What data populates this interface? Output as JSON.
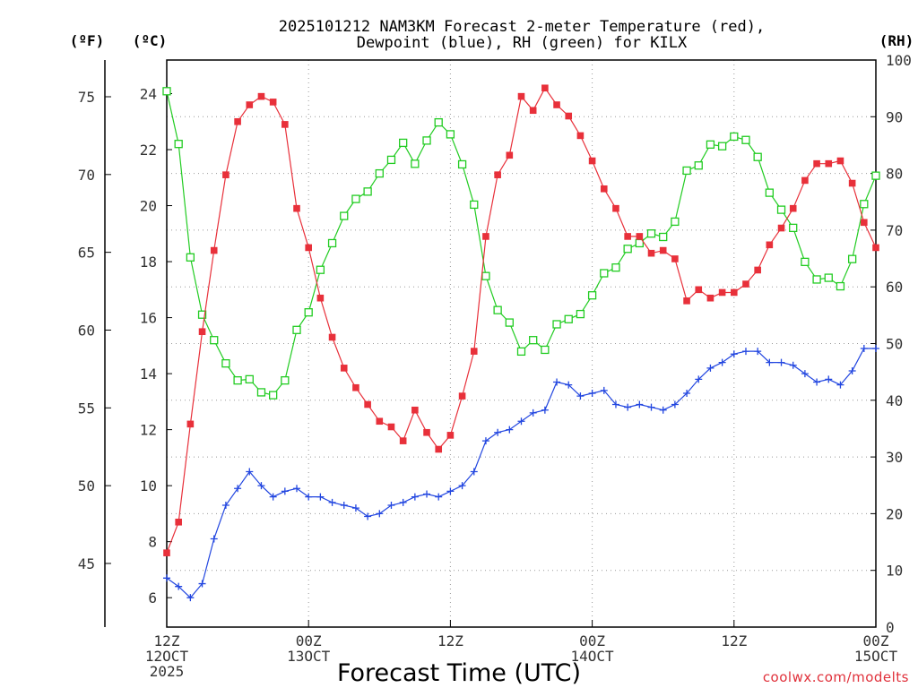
{
  "title_line1": "2025101212 NAM3KM Forecast 2-meter Temperature (red),",
  "title_line2": "Dewpoint (blue), RH (green) for KILX",
  "unit_f": "(ºF)",
  "unit_c": "(ºC)",
  "unit_rh": "(RH)",
  "credit": "coolwx.com/modelts",
  "chart_data": {
    "type": "line",
    "title": "2025101212 NAM3KM Forecast 2-meter Temperature (red), Dewpoint (blue), RH (green) for KILX",
    "xlabel": "Forecast Time (UTC)",
    "x_range_hours": [
      0,
      60
    ],
    "x_ticks": [
      {
        "hour": 0,
        "lines": [
          "12Z",
          "12OCT",
          "2025"
        ]
      },
      {
        "hour": 12,
        "lines": [
          "00Z",
          "13OCT"
        ]
      },
      {
        "hour": 24,
        "lines": [
          "12Z"
        ]
      },
      {
        "hour": 36,
        "lines": [
          "00Z",
          "14OCT"
        ]
      },
      {
        "hour": 48,
        "lines": [
          "12Z"
        ]
      },
      {
        "hour": 60,
        "lines": [
          "00Z",
          "15OCT"
        ]
      }
    ],
    "axes": {
      "left_c": {
        "label": "(ºC)",
        "range": [
          4.95,
          25.2
        ],
        "ticks": [
          6,
          8,
          10,
          12,
          14,
          16,
          18,
          20,
          22,
          24
        ]
      },
      "left_f": {
        "label": "(ºF)",
        "ticks": [
          45,
          50,
          55,
          60,
          65,
          70,
          75
        ]
      },
      "right_rh": {
        "label": "(RH)",
        "range": [
          0,
          100
        ],
        "ticks": [
          0,
          10,
          20,
          30,
          40,
          50,
          60,
          70,
          80,
          90,
          100
        ]
      }
    },
    "series": [
      {
        "name": "Temperature",
        "units": "C",
        "axis": "left_c",
        "color": "#e8303a",
        "marker": "filled-square",
        "values": [
          7.6,
          8.7,
          12.2,
          15.5,
          18.4,
          21.1,
          23.0,
          23.6,
          23.9,
          23.7,
          22.9,
          19.9,
          18.5,
          16.7,
          15.3,
          14.2,
          13.5,
          12.9,
          12.3,
          12.1,
          11.6,
          12.7,
          11.9,
          11.3,
          11.8,
          13.2,
          14.8,
          18.9,
          21.1,
          21.8,
          23.9,
          23.4,
          24.2,
          23.6,
          23.2,
          22.5,
          21.6,
          20.6,
          19.9,
          18.9,
          18.9,
          18.3,
          18.4,
          18.1,
          16.6,
          17.0,
          16.7,
          16.9,
          16.9,
          17.2,
          17.7,
          18.6,
          19.2,
          19.9,
          20.9,
          21.5,
          21.5,
          21.6,
          20.8,
          19.4,
          18.5
        ]
      },
      {
        "name": "Dewpoint",
        "units": "C",
        "axis": "left_c",
        "color": "#2246e0",
        "marker": "plus",
        "values": [
          6.7,
          6.4,
          6.0,
          6.5,
          8.1,
          9.3,
          9.9,
          10.5,
          10.0,
          9.6,
          9.8,
          9.9,
          9.6,
          9.6,
          9.4,
          9.3,
          9.2,
          8.9,
          9.0,
          9.3,
          9.4,
          9.6,
          9.7,
          9.6,
          9.8,
          10.0,
          10.5,
          11.6,
          11.9,
          12.0,
          12.3,
          12.6,
          12.7,
          13.7,
          13.6,
          13.2,
          13.3,
          13.4,
          12.9,
          12.8,
          12.9,
          12.8,
          12.7,
          12.9,
          13.3,
          13.8,
          14.2,
          14.4,
          14.7,
          14.8,
          14.8,
          14.4,
          14.4,
          14.3,
          14.0,
          13.7,
          13.8,
          13.6,
          14.1,
          14.9,
          14.9
        ]
      },
      {
        "name": "RH",
        "units": "%",
        "axis": "right_rh",
        "color": "#22cc22",
        "marker": "open-square",
        "values": [
          94.5,
          85.2,
          65.2,
          55.1,
          50.6,
          46.5,
          43.5,
          43.7,
          41.4,
          40.9,
          43.5,
          52.4,
          55.5,
          63.0,
          67.7,
          72.5,
          75.5,
          76.8,
          80.0,
          82.4,
          85.4,
          81.7,
          85.8,
          89.0,
          86.9,
          81.6,
          74.5,
          61.9,
          55.9,
          53.7,
          48.6,
          50.6,
          48.9,
          53.4,
          54.3,
          55.2,
          58.5,
          62.4,
          63.4,
          66.7,
          67.7,
          69.4,
          68.8,
          71.5,
          80.5,
          81.4,
          85.1,
          84.8,
          86.5,
          85.9,
          82.9,
          76.6,
          73.6,
          70.4,
          64.4,
          61.3,
          61.6,
          60.1,
          64.9,
          74.6,
          79.6
        ]
      }
    ]
  }
}
